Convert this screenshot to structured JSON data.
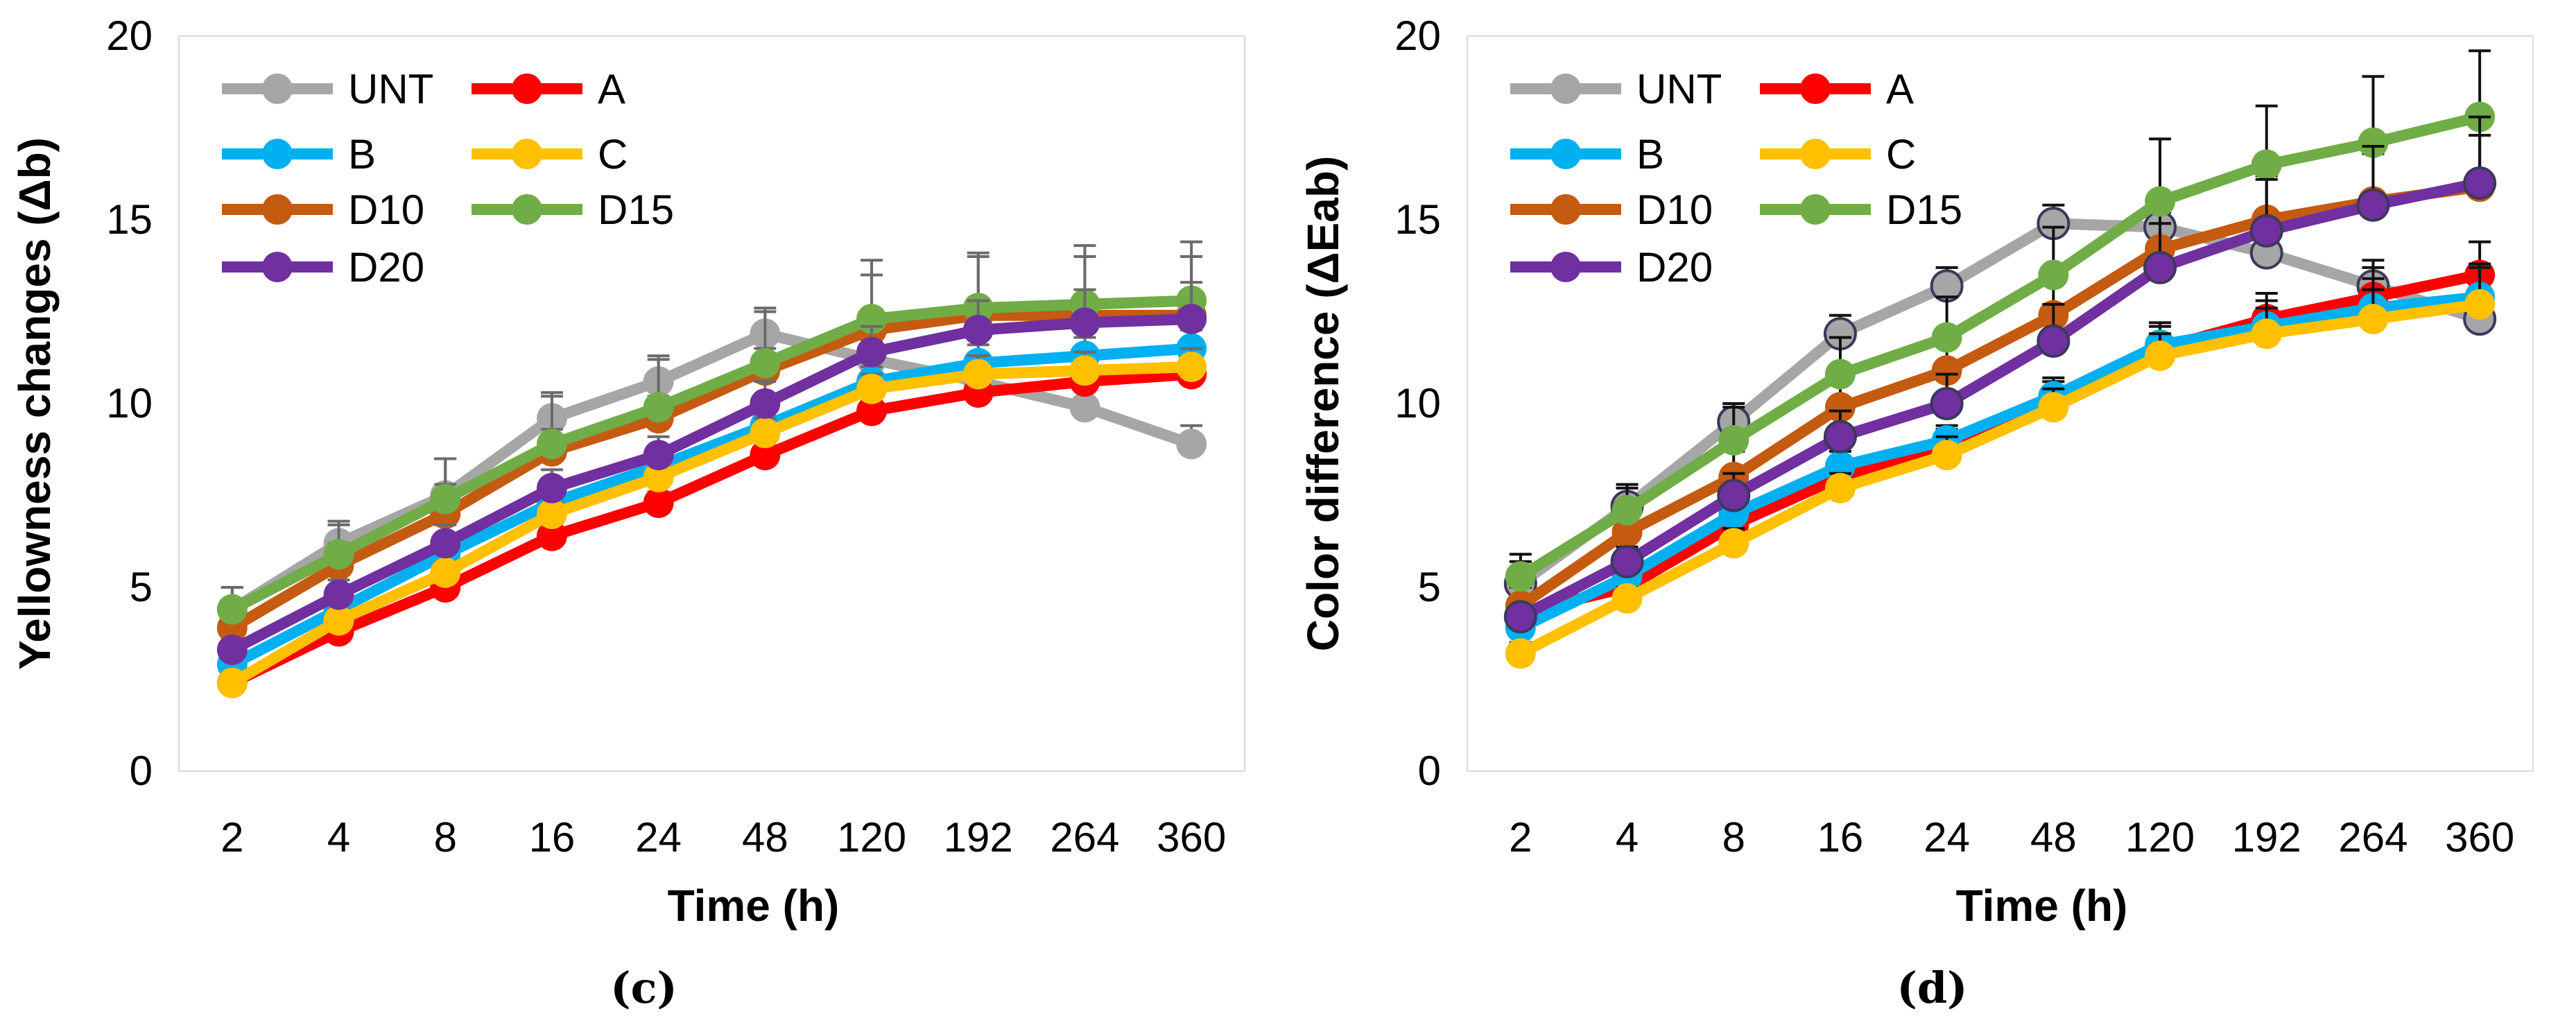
{
  "chart_data": [
    {
      "type": "line",
      "panel_label": "(c)",
      "title": "",
      "xlabel": "Time (h)",
      "ylabel": "Yellowness changes (Δb)",
      "categories": [
        "2",
        "4",
        "8",
        "16",
        "24",
        "48",
        "120",
        "192",
        "264",
        "360"
      ],
      "ylim": [
        0,
        20
      ],
      "yticks": [
        0,
        5,
        10,
        15,
        20
      ],
      "grid": false,
      "legend": "top-left, inside",
      "series": [
        {
          "name": "UNT",
          "color": "#a6a6a6",
          "values": [
            4.4,
            6.2,
            7.5,
            9.6,
            10.6,
            11.9,
            11.2,
            10.6,
            9.9,
            8.9
          ],
          "errors": [
            0.6,
            0.6,
            1.0,
            0.7,
            0.7,
            0.7,
            0.5,
            0.5,
            0.5,
            0.5
          ]
        },
        {
          "name": "A",
          "color": "#ff0000",
          "values": [
            2.4,
            3.8,
            5.0,
            6.4,
            7.3,
            8.6,
            9.8,
            10.3,
            10.6,
            10.8
          ],
          "errors": [
            0.2,
            0.3,
            0.3,
            0.3,
            0.3,
            0.4,
            0.4,
            0.5,
            0.5,
            0.5
          ]
        },
        {
          "name": "B",
          "color": "#00b0f0",
          "values": [
            2.9,
            4.4,
            5.9,
            7.3,
            8.3,
            9.4,
            10.6,
            11.1,
            11.3,
            11.5
          ],
          "errors": [
            0.2,
            0.3,
            0.3,
            0.3,
            0.3,
            0.4,
            0.4,
            0.5,
            0.5,
            0.5
          ]
        },
        {
          "name": "C",
          "color": "#ffc000",
          "values": [
            2.4,
            4.1,
            5.4,
            7.0,
            8.0,
            9.2,
            10.4,
            10.8,
            10.9,
            11.0
          ],
          "errors": [
            0.2,
            0.3,
            0.3,
            0.3,
            0.3,
            0.4,
            0.4,
            0.5,
            0.5,
            0.5
          ]
        },
        {
          "name": "D10",
          "color": "#c55a11",
          "values": [
            3.9,
            5.6,
            7.0,
            8.7,
            9.6,
            10.9,
            12.0,
            12.4,
            12.4,
            12.4
          ],
          "errors": [
            0.5,
            0.6,
            0.8,
            0.6,
            0.6,
            0.6,
            1.5,
            1.6,
            1.6,
            1.6
          ]
        },
        {
          "name": "D15",
          "color": "#70ad47",
          "values": [
            4.4,
            5.9,
            7.4,
            8.9,
            9.9,
            11.1,
            12.3,
            12.6,
            12.7,
            12.8
          ],
          "errors": [
            0.6,
            0.8,
            1.1,
            1.3,
            1.3,
            1.4,
            1.6,
            1.5,
            1.6,
            1.6
          ]
        },
        {
          "name": "D20",
          "color": "#7030a0",
          "values": [
            3.3,
            4.8,
            6.2,
            7.7,
            8.6,
            10.0,
            11.4,
            12.0,
            12.2,
            12.3
          ],
          "errors": [
            0.3,
            0.4,
            0.5,
            0.5,
            0.5,
            0.6,
            0.7,
            0.8,
            0.9,
            1.0
          ]
        }
      ]
    },
    {
      "type": "line",
      "panel_label": "(d)",
      "title": "",
      "xlabel": "Time (h)",
      "ylabel": "Color difference (ΔEab)",
      "categories": [
        "2",
        "4",
        "8",
        "16",
        "24",
        "48",
        "120",
        "192",
        "264",
        "360"
      ],
      "ylim": [
        0,
        20
      ],
      "yticks": [
        0,
        5,
        10,
        15,
        20
      ],
      "grid": false,
      "legend": "top-left, inside",
      "series": [
        {
          "name": "UNT",
          "color": "#a6a6a6",
          "values": [
            5.1,
            7.2,
            9.5,
            11.9,
            13.2,
            14.9,
            14.8,
            14.1,
            13.2,
            12.3
          ],
          "errors": [
            0.6,
            0.5,
            0.5,
            0.5,
            0.5,
            0.5,
            0.5,
            0.6,
            0.7,
            0.8
          ]
        },
        {
          "name": "A",
          "color": "#ff0000",
          "values": [
            4.3,
            5.0,
            6.7,
            8.0,
            8.9,
            10.1,
            11.5,
            12.3,
            12.9,
            13.5
          ],
          "errors": [
            0.4,
            0.3,
            0.4,
            0.4,
            0.4,
            0.5,
            0.6,
            0.7,
            0.8,
            0.9
          ]
        },
        {
          "name": "B",
          "color": "#00b0f0",
          "values": [
            3.9,
            5.3,
            7.0,
            8.3,
            9.0,
            10.2,
            11.6,
            12.1,
            12.6,
            12.9
          ],
          "errors": [
            0.3,
            0.3,
            0.4,
            0.4,
            0.4,
            0.5,
            0.6,
            0.7,
            0.8,
            0.9
          ]
        },
        {
          "name": "C",
          "color": "#ffc000",
          "values": [
            3.2,
            4.7,
            6.2,
            7.7,
            8.6,
            9.9,
            11.3,
            11.9,
            12.3,
            12.7
          ],
          "errors": [
            0.3,
            0.3,
            0.4,
            0.4,
            0.5,
            0.5,
            0.6,
            0.7,
            0.8,
            1.0
          ]
        },
        {
          "name": "D10",
          "color": "#c55a11",
          "values": [
            4.5,
            6.5,
            8.0,
            9.9,
            10.9,
            12.4,
            14.2,
            15.0,
            15.5,
            15.9
          ],
          "errors": [
            0.5,
            0.6,
            0.7,
            0.8,
            0.8,
            0.9,
            1.0,
            1.2,
            1.3,
            1.4
          ]
        },
        {
          "name": "D15",
          "color": "#70ad47",
          "values": [
            5.3,
            7.1,
            9.0,
            10.8,
            11.8,
            13.5,
            15.5,
            16.5,
            17.1,
            17.8
          ],
          "errors": [
            0.6,
            0.7,
            0.9,
            1.0,
            1.1,
            1.3,
            1.7,
            1.6,
            1.8,
            1.8
          ]
        },
        {
          "name": "D20",
          "color": "#7030a0",
          "values": [
            4.2,
            5.7,
            7.5,
            9.1,
            10.0,
            11.7,
            13.7,
            14.7,
            15.4,
            16.0
          ],
          "errors": [
            0.3,
            0.4,
            0.6,
            0.7,
            0.8,
            1.0,
            1.2,
            1.4,
            1.6,
            1.8
          ]
        }
      ]
    }
  ]
}
